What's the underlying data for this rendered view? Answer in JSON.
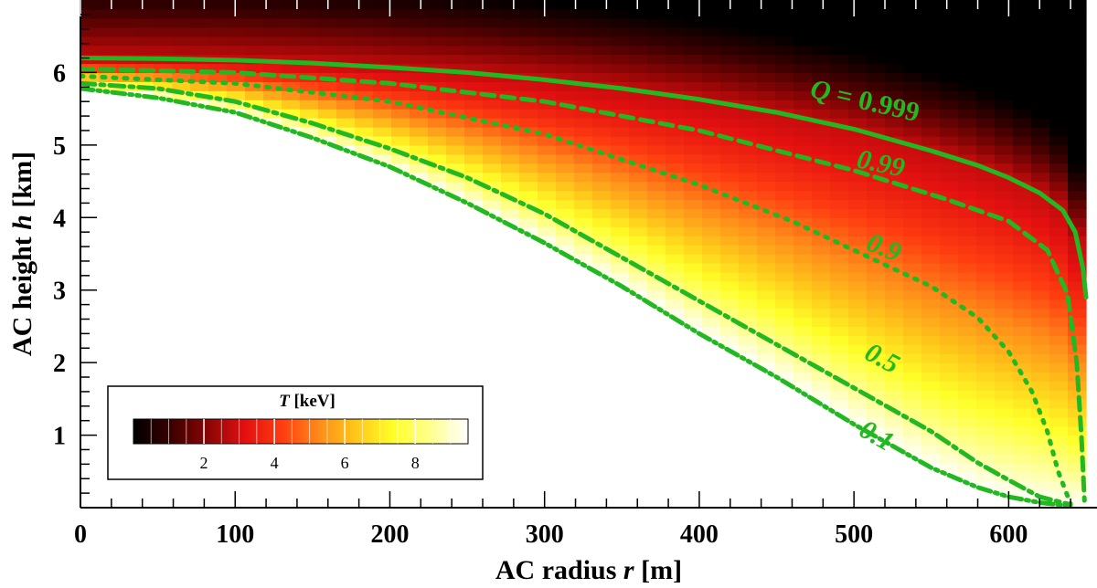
{
  "chart_data": {
    "type": "heatmap",
    "xlabel": {
      "prefix": "AC radius ",
      "var": "r",
      "suffix": " [m]"
    },
    "ylabel": {
      "prefix": "AC height ",
      "var": "h",
      "suffix": " [km]"
    },
    "xlim": [
      0,
      650
    ],
    "ylim": [
      0,
      7
    ],
    "xticks": [
      0,
      100,
      200,
      300,
      400,
      500,
      600
    ],
    "yticks": [
      1,
      2,
      3,
      4,
      5,
      6
    ],
    "colorbar": {
      "title_var": "T",
      "title_unit": " [keV]",
      "range": [
        0,
        9.5
      ],
      "ticks": [
        2,
        4,
        6,
        8
      ],
      "colormap": [
        "#000000",
        "#3a0000",
        "#8a0505",
        "#e31010",
        "#ff3d10",
        "#ff8c1a",
        "#ffc81a",
        "#ffff28",
        "#ffff90",
        "#ffffff"
      ],
      "position": "bottom-left"
    },
    "series": [
      {
        "name": "Q = 0.999",
        "style": "solid",
        "x": [
          0,
          50,
          100,
          150,
          200,
          250,
          300,
          350,
          400,
          450,
          500,
          550,
          580,
          600,
          620,
          635,
          643,
          648,
          650
        ],
        "y": [
          6.2,
          6.19,
          6.17,
          6.13,
          6.07,
          6.0,
          5.9,
          5.78,
          5.63,
          5.45,
          5.22,
          4.92,
          4.72,
          4.55,
          4.34,
          4.1,
          3.8,
          3.3,
          2.9
        ]
      },
      {
        "name": "0.99",
        "style": "dashed",
        "x": [
          0,
          100,
          200,
          300,
          400,
          500,
          560,
          600,
          625,
          638,
          644,
          647,
          649
        ],
        "y": [
          6.05,
          6.0,
          5.85,
          5.6,
          5.2,
          4.65,
          4.25,
          3.95,
          3.55,
          2.95,
          2.0,
          1.0,
          0.1
        ]
      },
      {
        "name": "0.9",
        "style": "dotted",
        "x": [
          0,
          100,
          200,
          300,
          400,
          460,
          500,
          550,
          580,
          600,
          615,
          625,
          632,
          640
        ],
        "y": [
          5.95,
          5.85,
          5.6,
          5.15,
          4.45,
          3.95,
          3.55,
          3.05,
          2.62,
          2.15,
          1.6,
          1.05,
          0.5,
          0.05
        ]
      },
      {
        "name": "0.5",
        "style": "dashdot",
        "x": [
          0,
          50,
          100,
          150,
          200,
          250,
          300,
          350,
          400,
          450,
          500,
          550,
          580,
          600,
          620,
          640
        ],
        "y": [
          5.85,
          5.78,
          5.6,
          5.3,
          4.95,
          4.55,
          4.05,
          3.45,
          2.85,
          2.25,
          1.65,
          1.05,
          0.62,
          0.38,
          0.15,
          0.04
        ]
      },
      {
        "name": "0.1",
        "style": "dashdotdot",
        "x": [
          0,
          50,
          100,
          150,
          200,
          250,
          300,
          350,
          400,
          450,
          500,
          550,
          580,
          600,
          620,
          640
        ],
        "y": [
          5.78,
          5.65,
          5.45,
          5.1,
          4.7,
          4.2,
          3.65,
          3.05,
          2.4,
          1.8,
          1.15,
          0.55,
          0.28,
          0.15,
          0.07,
          0.02
        ]
      }
    ],
    "contour_labels": [
      {
        "var": "Q",
        "text": " = 0.999",
        "series": "Q = 0.999"
      },
      {
        "text": "0.99",
        "series": "0.99"
      },
      {
        "text": "0.9",
        "series": "0.9"
      },
      {
        "text": "0.5",
        "series": "0.5"
      },
      {
        "text": "0.1",
        "series": "0.1"
      }
    ],
    "colors": {
      "contour": "#22b822",
      "background_top": "#000000",
      "background_bottom": "#ffffff"
    }
  }
}
